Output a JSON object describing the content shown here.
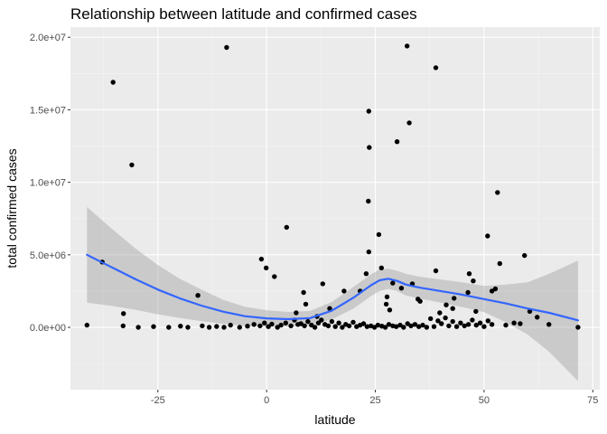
{
  "chart_data": {
    "type": "scatter",
    "title": "Relationship between latitude and confirmed cases",
    "xlabel": "latitude",
    "ylabel": "total confirmed cases",
    "xlim": [
      -45.1,
      76.6
    ],
    "ylim": [
      -4300000,
      20700000
    ],
    "x_ticks": [
      -25,
      0,
      25,
      50,
      75
    ],
    "x_tick_labels": [
      "-25",
      "0",
      "25",
      "50",
      "75"
    ],
    "y_ticks": [
      0,
      5000000,
      10000000,
      15000000,
      20000000
    ],
    "y_tick_labels": [
      "0.0e+00",
      "5.0e+06",
      "1.0e+07",
      "1.5e+07",
      "2.0e+07"
    ],
    "grid": true,
    "legend": "none",
    "colors": {
      "panel": "#ebebeb",
      "grid_major": "#ffffff",
      "points": "#000000",
      "smooth_line": "#3366ff",
      "confidence_band": "#999999"
    },
    "points": [
      [
        -9.2,
        19300000
      ],
      [
        32.3,
        19400000
      ],
      [
        38.9,
        17900000
      ],
      [
        -35.3,
        16900000
      ],
      [
        23.5,
        14900000
      ],
      [
        32.8,
        14100000
      ],
      [
        30.0,
        12800000
      ],
      [
        23.6,
        12400000
      ],
      [
        -31.0,
        11200000
      ],
      [
        53.1,
        9300000
      ],
      [
        23.4,
        8700000
      ],
      [
        4.6,
        6900000
      ],
      [
        25.8,
        6400000
      ],
      [
        50.8,
        6300000
      ],
      [
        59.3,
        4950000
      ],
      [
        23.5,
        5200000
      ],
      [
        -1.2,
        4700000
      ],
      [
        -0.1,
        4100000
      ],
      [
        26.4,
        4100000
      ],
      [
        53.6,
        4400000
      ],
      [
        -37.8,
        4500000
      ],
      [
        1.8,
        3500000
      ],
      [
        12.9,
        3000000
      ],
      [
        38.9,
        3900000
      ],
      [
        46.6,
        3700000
      ],
      [
        22.9,
        3700000
      ],
      [
        29.0,
        3050000
      ],
      [
        33.5,
        3000000
      ],
      [
        47.5,
        3200000
      ],
      [
        52.6,
        2650000
      ],
      [
        51.8,
        2500000
      ],
      [
        21.5,
        2500000
      ],
      [
        17.8,
        2500000
      ],
      [
        27.7,
        2100000
      ],
      [
        34.8,
        1950000
      ],
      [
        31.0,
        2700000
      ],
      [
        46.3,
        2400000
      ],
      [
        43.1,
        2000000
      ],
      [
        8.5,
        2400000
      ],
      [
        -15.8,
        2200000
      ],
      [
        35.3,
        1800000
      ],
      [
        -32.9,
        950000
      ],
      [
        9.0,
        1600000
      ],
      [
        41.3,
        1550000
      ],
      [
        14.5,
        1300000
      ],
      [
        28.3,
        1200000
      ],
      [
        27.5,
        1600000
      ],
      [
        42.8,
        1300000
      ],
      [
        48.1,
        1100000
      ],
      [
        6.8,
        1000000
      ],
      [
        39.8,
        1000000
      ],
      [
        11.6,
        750000
      ],
      [
        -41.3,
        150000
      ],
      [
        -33.0,
        100000
      ],
      [
        -29.5,
        0
      ],
      [
        -26.0,
        50000
      ],
      [
        -22.5,
        0
      ],
      [
        -19.8,
        80000
      ],
      [
        -18.1,
        0
      ],
      [
        -14.8,
        100000
      ],
      [
        -13.2,
        0
      ],
      [
        -11.5,
        60000
      ],
      [
        -9.8,
        0
      ],
      [
        -8.3,
        150000
      ],
      [
        -6.2,
        0
      ],
      [
        -4.4,
        80000
      ],
      [
        -2.9,
        200000
      ],
      [
        -1.5,
        100000
      ],
      [
        -0.5,
        300000
      ],
      [
        0.4,
        50000
      ],
      [
        1.2,
        220000
      ],
      [
        2.5,
        0
      ],
      [
        3.3,
        150000
      ],
      [
        4.4,
        300000
      ],
      [
        5.6,
        100000
      ],
      [
        6.4,
        500000
      ],
      [
        7.2,
        200000
      ],
      [
        7.9,
        250000
      ],
      [
        8.7,
        100000
      ],
      [
        9.5,
        400000
      ],
      [
        10.3,
        150000
      ],
      [
        11.1,
        0
      ],
      [
        11.9,
        300000
      ],
      [
        12.6,
        500000
      ],
      [
        13.4,
        200000
      ],
      [
        14.2,
        100000
      ],
      [
        15.0,
        400000
      ],
      [
        15.8,
        50000
      ],
      [
        16.6,
        300000
      ],
      [
        17.4,
        0
      ],
      [
        18.2,
        200000
      ],
      [
        19.0,
        100000
      ],
      [
        19.9,
        350000
      ],
      [
        20.7,
        50000
      ],
      [
        21.5,
        150000
      ],
      [
        22.3,
        250000
      ],
      [
        23.1,
        50000
      ],
      [
        24.0,
        100000
      ],
      [
        24.8,
        0
      ],
      [
        25.6,
        150000
      ],
      [
        26.5,
        80000
      ],
      [
        27.3,
        0
      ],
      [
        28.1,
        200000
      ],
      [
        29.0,
        100000
      ],
      [
        29.8,
        50000
      ],
      [
        30.7,
        150000
      ],
      [
        31.5,
        0
      ],
      [
        32.4,
        250000
      ],
      [
        33.2,
        100000
      ],
      [
        34.1,
        200000
      ],
      [
        35.0,
        50000
      ],
      [
        35.9,
        150000
      ],
      [
        36.8,
        0
      ],
      [
        37.7,
        600000
      ],
      [
        38.5,
        50000
      ],
      [
        39.4,
        450000
      ],
      [
        40.2,
        250000
      ],
      [
        41.1,
        650000
      ],
      [
        41.9,
        100000
      ],
      [
        42.8,
        400000
      ],
      [
        43.7,
        50000
      ],
      [
        44.6,
        300000
      ],
      [
        45.5,
        100000
      ],
      [
        46.4,
        200000
      ],
      [
        47.3,
        500000
      ],
      [
        48.2,
        150000
      ],
      [
        49.1,
        300000
      ],
      [
        50.0,
        50000
      ],
      [
        50.9,
        450000
      ],
      [
        51.8,
        200000
      ],
      [
        55.0,
        150000
      ],
      [
        56.9,
        300000
      ],
      [
        58.3,
        250000
      ],
      [
        60.5,
        1100000
      ],
      [
        62.2,
        700000
      ],
      [
        64.9,
        200000
      ],
      [
        71.6,
        0
      ]
    ],
    "smooth": {
      "x": [
        -41.3,
        -36,
        -30,
        -25,
        -20,
        -15,
        -10,
        -5,
        0,
        5,
        10,
        15,
        20,
        24,
        26,
        28,
        30,
        32,
        35,
        40,
        45,
        50,
        55,
        60,
        65,
        71.6
      ],
      "y": [
        5000000,
        4200000,
        3300000,
        2600000,
        2000000,
        1500000,
        1080000,
        770000,
        620000,
        560000,
        640000,
        1150000,
        2050000,
        2900000,
        3250000,
        3350000,
        3200000,
        2950000,
        2750000,
        2500000,
        2250000,
        1950000,
        1650000,
        1300000,
        1000000,
        480000
      ],
      "ci_low": [
        1700000,
        1500000,
        1200000,
        900000,
        650000,
        420000,
        250000,
        120000,
        60000,
        60000,
        150000,
        550000,
        1300000,
        2150000,
        2500000,
        2650000,
        2500000,
        2200000,
        2000000,
        1700000,
        1400000,
        1050000,
        350000,
        -500000,
        -1700000,
        -3700000
      ],
      "ci_high": [
        8300000,
        6900000,
        5400000,
        4300000,
        3350000,
        2600000,
        1900000,
        1420000,
        1180000,
        1060000,
        1130000,
        1750000,
        2800000,
        3650000,
        4000000,
        4050000,
        3900000,
        3700000,
        3500000,
        3300000,
        3100000,
        2850000,
        2950000,
        3100000,
        3700000,
        4600000
      ]
    }
  }
}
